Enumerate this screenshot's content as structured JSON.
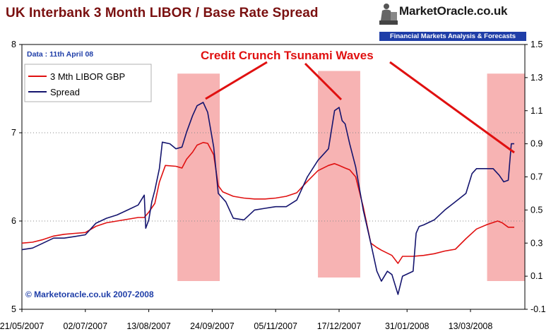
{
  "title": "UK Interbank 3 Month LIBOR / Base Rate Spread",
  "logo": {
    "name": "MarketOracle.co.uk",
    "tagline": "Financial Markets Analysis & Forecasts"
  },
  "date_note": "Data : 11th April  08",
  "annotation": "Credit Crunch Tsunami Waves",
  "copyright": "© Marketoracle.co.uk 2007-2008",
  "colors": {
    "libor": "#e01010",
    "spread": "#14146e",
    "shade": "#f7b3b3",
    "annotation": "#e01010",
    "title": "#7a1010"
  },
  "chart_data": {
    "type": "line",
    "title": "UK Interbank 3 Month LIBOR / Base Rate Spread",
    "x_tick_labels": [
      "21/05/2007",
      "02/07/2007",
      "13/08/2007",
      "24/09/2007",
      "05/11/2007",
      "17/12/2007",
      "31/01/2008",
      "13/03/2008"
    ],
    "xlim": [
      "2007-05-21",
      "2008-04-18"
    ],
    "left_axis": {
      "ylim": [
        5,
        8
      ],
      "ticks": [
        5,
        6,
        7,
        8
      ]
    },
    "right_axis": {
      "ylim": [
        -0.1,
        1.5
      ],
      "ticks": [
        -0.1,
        0.1,
        0.3,
        0.5,
        0.7,
        0.9,
        1.1,
        1.3,
        1.5
      ]
    },
    "legend": {
      "placement": "top-left",
      "entries": [
        "3 Mth LIBOR GBP",
        "Spread"
      ]
    },
    "grid": "horizontal dotted",
    "shaded_periods": [
      {
        "start": "2007-09-01",
        "end": "2007-09-29",
        "y_left": [
          5.32,
          7.67
        ]
      },
      {
        "start": "2007-12-03",
        "end": "2007-12-31",
        "y_left": [
          5.36,
          7.7
        ]
      },
      {
        "start": "2008-03-24",
        "end": "2008-04-18",
        "y_left": [
          5.32,
          7.67
        ]
      }
    ],
    "series": [
      {
        "name": "3 Mth LIBOR GBP",
        "axis": "left",
        "points": [
          [
            "2007-05-21",
            5.75
          ],
          [
            "2007-05-28",
            5.76
          ],
          [
            "2007-06-04",
            5.79
          ],
          [
            "2007-06-11",
            5.83
          ],
          [
            "2007-06-18",
            5.85
          ],
          [
            "2007-06-25",
            5.86
          ],
          [
            "2007-07-02",
            5.87
          ],
          [
            "2007-07-09",
            5.94
          ],
          [
            "2007-07-16",
            5.98
          ],
          [
            "2007-07-23",
            6.0
          ],
          [
            "2007-07-30",
            6.02
          ],
          [
            "2007-08-06",
            6.04
          ],
          [
            "2007-08-10",
            6.04
          ],
          [
            "2007-08-13",
            6.1
          ],
          [
            "2007-08-17",
            6.2
          ],
          [
            "2007-08-20",
            6.44
          ],
          [
            "2007-08-24",
            6.63
          ],
          [
            "2007-08-31",
            6.62
          ],
          [
            "2007-09-04",
            6.6
          ],
          [
            "2007-09-07",
            6.7
          ],
          [
            "2007-09-11",
            6.78
          ],
          [
            "2007-09-14",
            6.86
          ],
          [
            "2007-09-18",
            6.89
          ],
          [
            "2007-09-21",
            6.88
          ],
          [
            "2007-09-25",
            6.75
          ],
          [
            "2007-09-28",
            6.4
          ],
          [
            "2007-10-01",
            6.33
          ],
          [
            "2007-10-08",
            6.28
          ],
          [
            "2007-10-15",
            6.26
          ],
          [
            "2007-10-22",
            6.25
          ],
          [
            "2007-10-29",
            6.25
          ],
          [
            "2007-11-05",
            6.26
          ],
          [
            "2007-11-12",
            6.28
          ],
          [
            "2007-11-19",
            6.32
          ],
          [
            "2007-11-26",
            6.45
          ],
          [
            "2007-12-03",
            6.57
          ],
          [
            "2007-12-10",
            6.63
          ],
          [
            "2007-12-14",
            6.65
          ],
          [
            "2007-12-17",
            6.63
          ],
          [
            "2007-12-21",
            6.6
          ],
          [
            "2007-12-24",
            6.58
          ],
          [
            "2007-12-28",
            6.5
          ],
          [
            "2008-01-02",
            6.16
          ],
          [
            "2008-01-07",
            5.75
          ],
          [
            "2008-01-11",
            5.7
          ],
          [
            "2008-01-14",
            5.67
          ],
          [
            "2008-01-21",
            5.61
          ],
          [
            "2008-01-25",
            5.52
          ],
          [
            "2008-01-28",
            5.6
          ],
          [
            "2008-02-04",
            5.6
          ],
          [
            "2008-02-11",
            5.61
          ],
          [
            "2008-02-18",
            5.63
          ],
          [
            "2008-02-25",
            5.66
          ],
          [
            "2008-03-03",
            5.68
          ],
          [
            "2008-03-10",
            5.8
          ],
          [
            "2008-03-17",
            5.91
          ],
          [
            "2008-03-24",
            5.96
          ],
          [
            "2008-03-31",
            6.0
          ],
          [
            "2008-04-03",
            5.98
          ],
          [
            "2008-04-07",
            5.93
          ],
          [
            "2008-04-11",
            5.93
          ]
        ]
      },
      {
        "name": "Spread",
        "axis": "right",
        "points": [
          [
            "2007-05-21",
            0.26
          ],
          [
            "2007-05-28",
            0.27
          ],
          [
            "2007-06-04",
            0.3
          ],
          [
            "2007-06-11",
            0.33
          ],
          [
            "2007-06-18",
            0.33
          ],
          [
            "2007-06-25",
            0.34
          ],
          [
            "2007-07-02",
            0.35
          ],
          [
            "2007-07-09",
            0.42
          ],
          [
            "2007-07-16",
            0.45
          ],
          [
            "2007-07-23",
            0.47
          ],
          [
            "2007-07-30",
            0.5
          ],
          [
            "2007-08-06",
            0.53
          ],
          [
            "2007-08-10",
            0.59
          ],
          [
            "2007-08-11",
            0.39
          ],
          [
            "2007-08-13",
            0.44
          ],
          [
            "2007-08-15",
            0.55
          ],
          [
            "2007-08-17",
            0.62
          ],
          [
            "2007-08-20",
            0.75
          ],
          [
            "2007-08-22",
            0.91
          ],
          [
            "2007-08-27",
            0.9
          ],
          [
            "2007-08-31",
            0.87
          ],
          [
            "2007-09-04",
            0.88
          ],
          [
            "2007-09-07",
            0.97
          ],
          [
            "2007-09-11",
            1.07
          ],
          [
            "2007-09-14",
            1.13
          ],
          [
            "2007-09-18",
            1.15
          ],
          [
            "2007-09-21",
            1.09
          ],
          [
            "2007-09-25",
            0.88
          ],
          [
            "2007-09-28",
            0.6
          ],
          [
            "2007-10-03",
            0.55
          ],
          [
            "2007-10-08",
            0.45
          ],
          [
            "2007-10-15",
            0.44
          ],
          [
            "2007-10-22",
            0.5
          ],
          [
            "2007-10-29",
            0.51
          ],
          [
            "2007-11-05",
            0.52
          ],
          [
            "2007-11-12",
            0.52
          ],
          [
            "2007-11-19",
            0.56
          ],
          [
            "2007-11-26",
            0.7
          ],
          [
            "2007-12-03",
            0.8
          ],
          [
            "2007-12-10",
            0.87
          ],
          [
            "2007-12-14",
            1.1
          ],
          [
            "2007-12-17",
            1.12
          ],
          [
            "2007-12-19",
            1.04
          ],
          [
            "2007-12-21",
            1.02
          ],
          [
            "2007-12-24",
            0.9
          ],
          [
            "2007-12-28",
            0.76
          ],
          [
            "2008-01-02",
            0.5
          ],
          [
            "2008-01-07",
            0.3
          ],
          [
            "2008-01-11",
            0.13
          ],
          [
            "2008-01-14",
            0.07
          ],
          [
            "2008-01-18",
            0.13
          ],
          [
            "2008-01-21",
            0.11
          ],
          [
            "2008-01-25",
            -0.01
          ],
          [
            "2008-01-28",
            0.1
          ],
          [
            "2008-02-04",
            0.13
          ],
          [
            "2008-02-06",
            0.36
          ],
          [
            "2008-02-08",
            0.4
          ],
          [
            "2008-02-11",
            0.41
          ],
          [
            "2008-02-18",
            0.44
          ],
          [
            "2008-02-25",
            0.5
          ],
          [
            "2008-03-03",
            0.55
          ],
          [
            "2008-03-10",
            0.6
          ],
          [
            "2008-03-14",
            0.72
          ],
          [
            "2008-03-17",
            0.75
          ],
          [
            "2008-03-24",
            0.75
          ],
          [
            "2008-03-28",
            0.75
          ],
          [
            "2008-04-01",
            0.71
          ],
          [
            "2008-04-04",
            0.67
          ],
          [
            "2008-04-07",
            0.68
          ],
          [
            "2008-04-09",
            0.9
          ],
          [
            "2008-04-11",
            0.9
          ]
        ]
      }
    ]
  }
}
